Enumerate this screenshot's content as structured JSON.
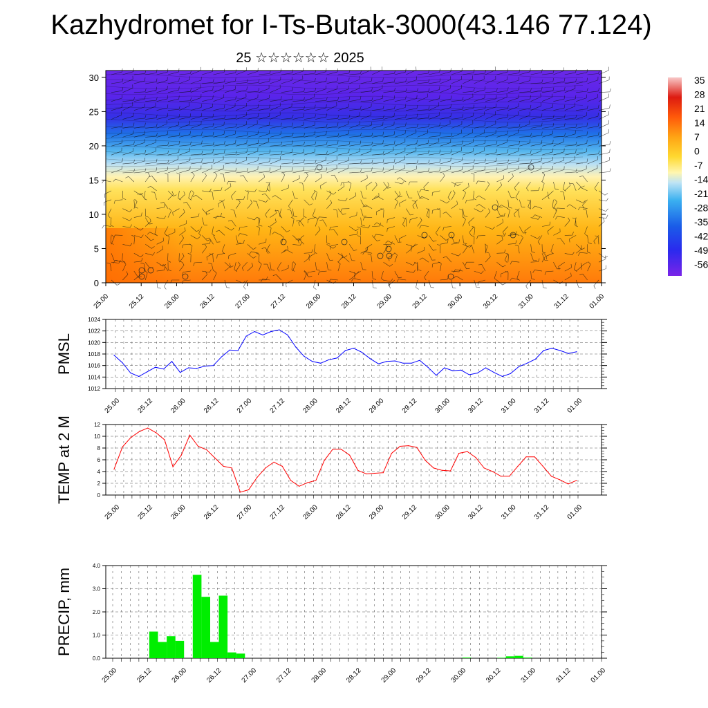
{
  "title": "Kazhydromet for I-Ts-Butak-3000(43.146 77.124)",
  "subtitle": "25 ☆☆☆☆☆☆ 2025",
  "time_ticks": [
    "25.00",
    "25.12",
    "26.00",
    "26.12",
    "27.00",
    "27.12",
    "28.00",
    "28.12",
    "29.00",
    "29.12",
    "30.00",
    "30.12",
    "31.00",
    "31.12",
    "01.00"
  ],
  "colors": {
    "pmsl_line": "#0000ff",
    "temp_line": "#ff0000",
    "precip_bar": "#00ee00"
  },
  "chart_data": [
    {
      "type": "heatmap",
      "ylim": [
        0,
        31
      ],
      "yticks": [
        0,
        5,
        10,
        15,
        20,
        25,
        30
      ],
      "colorbar": {
        "labels": [
          "35",
          "28",
          "21",
          "14",
          "7",
          "0",
          "-7",
          "-14",
          "-21",
          "-28",
          "-35",
          "-42",
          "-49",
          "-56"
        ],
        "range": [
          -63,
          35
        ]
      },
      "wind_barbs": true
    },
    {
      "type": "line",
      "ylabel": "PMSL",
      "ylim": [
        1012,
        1024
      ],
      "yticks": [
        1012,
        1014,
        1016,
        1018,
        1020,
        1022,
        1024
      ],
      "grid": true,
      "values": [
        1017.8,
        1016.5,
        1014.7,
        1014.1,
        1014.9,
        1015.7,
        1015.4,
        1016.7,
        1014.8,
        1015.6,
        1015.5,
        1015.9,
        1016.0,
        1017.5,
        1018.7,
        1018.6,
        1021.1,
        1021.9,
        1021.3,
        1021.9,
        1022.2,
        1021.3,
        1019.2,
        1017.6,
        1016.7,
        1016.4,
        1017.0,
        1017.3,
        1018.6,
        1019.0,
        1018.3,
        1017.2,
        1016.3,
        1016.7,
        1016.8,
        1016.4,
        1016.4,
        1016.9,
        1015.7,
        1014.3,
        1015.6,
        1015.1,
        1015.2,
        1014.4,
        1014.7,
        1015.6,
        1014.8,
        1014.1,
        1014.6,
        1015.8,
        1016.4,
        1017.1,
        1018.6,
        1019.0,
        1018.6,
        1018.1,
        1018.4
      ]
    },
    {
      "type": "line",
      "ylabel": "TEMP at 2 M",
      "ylim": [
        0,
        12
      ],
      "yticks": [
        0,
        2,
        4,
        6,
        8,
        10,
        12
      ],
      "grid": true,
      "values": [
        4.4,
        8.2,
        9.8,
        10.8,
        11.4,
        10.6,
        9.4,
        4.8,
        6.8,
        10.2,
        8.3,
        7.7,
        6.3,
        4.9,
        4.6,
        0.5,
        0.9,
        3.0,
        4.6,
        5.6,
        4.9,
        2.5,
        1.5,
        2.1,
        2.5,
        5.9,
        7.8,
        7.8,
        6.8,
        4.2,
        3.6,
        3.7,
        3.8,
        7.1,
        8.3,
        8.4,
        8.1,
        5.9,
        4.6,
        4.2,
        4.1,
        7.1,
        7.4,
        6.4,
        4.6,
        4.0,
        3.2,
        3.2,
        4.9,
        6.5,
        6.5,
        4.9,
        3.2,
        2.6,
        1.9,
        2.5
      ]
    },
    {
      "type": "bar",
      "ylabel": "PRECIP, mm",
      "ylim": [
        0,
        4
      ],
      "yticks": [
        "0.0",
        "1.0",
        "2.0",
        "3.0",
        "4.0"
      ],
      "grid": true,
      "values": [
        0,
        0,
        0,
        0,
        0,
        1.15,
        0.7,
        0.95,
        0.75,
        0,
        3.6,
        2.65,
        0.7,
        2.7,
        0.25,
        0.2,
        0,
        0,
        0,
        0,
        0,
        0,
        0,
        0,
        0,
        0,
        0,
        0,
        0,
        0,
        0,
        0,
        0,
        0,
        0,
        0,
        0,
        0,
        0,
        0,
        0,
        0.03,
        0,
        0,
        0,
        0.02,
        0.08,
        0.1,
        0.03,
        0,
        0,
        0,
        0,
        0,
        0,
        0,
        0
      ]
    }
  ]
}
